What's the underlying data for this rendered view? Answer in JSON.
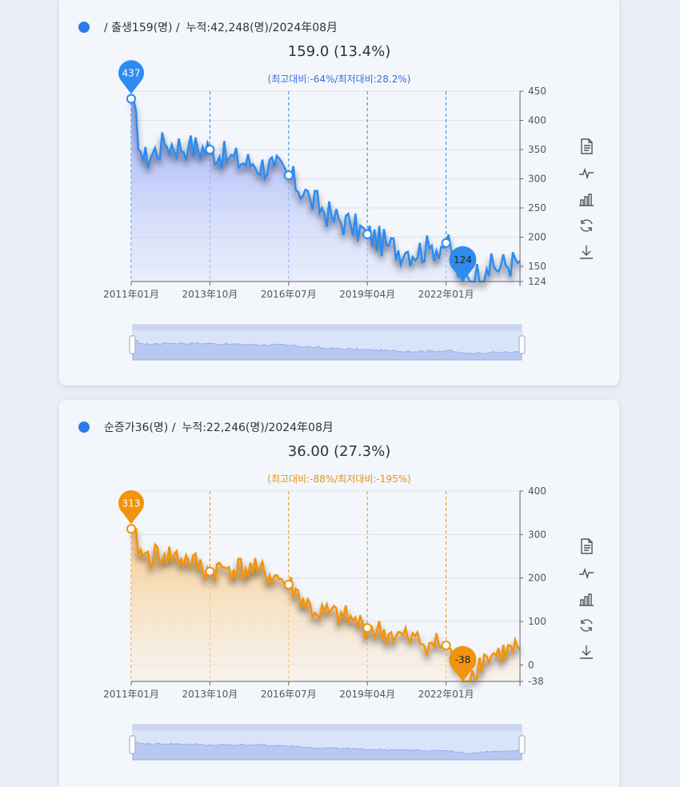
{
  "panels": [
    {
      "header": {
        "prefix": "/ 출생159(명) /",
        "cumulative": "누적:42,248(명)/2024年08月"
      },
      "value_text": "159.0 (13.4%)",
      "compare_text": "(최고대비:-64%/최저대비:28.2%)",
      "accent": "#2f8bef",
      "max_pin": "437",
      "min_pin": "124",
      "tools": [
        "document-icon",
        "line-chart-icon",
        "bar-chart-icon",
        "refresh-icon",
        "download-icon"
      ]
    },
    {
      "header": {
        "prefix": "순증가36(명) /",
        "cumulative": "누적:22,246(명)/2024年08月"
      },
      "value_text": "36.00 (27.3%)",
      "compare_text": "(최고대비:-88%/최저대비:-195%)",
      "accent": "#f2930d",
      "max_pin": "313",
      "min_pin": "-38",
      "tools": [
        "document-icon",
        "line-chart-icon",
        "bar-chart-icon",
        "refresh-icon",
        "download-icon"
      ]
    }
  ],
  "chart_data": [
    {
      "type": "area",
      "x_start": "2011-01",
      "x_end": "2024-08",
      "xticks": [
        "2011年01月",
        "2013年10月",
        "2016年07月",
        "2019年04月",
        "2022年01月"
      ],
      "yticks": [
        "450",
        "400",
        "350",
        "300",
        "250",
        "200",
        "150",
        "124"
      ],
      "ylim": [
        124,
        450
      ],
      "max": 437,
      "min": 124,
      "anchors": [
        [
          "2011-01",
          437
        ],
        [
          "2011-06",
          330
        ],
        [
          "2012-03",
          360
        ],
        [
          "2013-01",
          355
        ],
        [
          "2013-10",
          350
        ],
        [
          "2014-06",
          335
        ],
        [
          "2015-04",
          325
        ],
        [
          "2016-01",
          320
        ],
        [
          "2016-07",
          306
        ],
        [
          "2017-04",
          265
        ],
        [
          "2018-01",
          235
        ],
        [
          "2018-09",
          220
        ],
        [
          "2019-04",
          205
        ],
        [
          "2020-01",
          185
        ],
        [
          "2020-09",
          175
        ],
        [
          "2021-06",
          180
        ],
        [
          "2022-01",
          190
        ],
        [
          "2022-08",
          124
        ],
        [
          "2023-06",
          145
        ],
        [
          "2024-08",
          159
        ]
      ],
      "noise": 26
    },
    {
      "type": "area",
      "x_start": "2011-01",
      "x_end": "2024-08",
      "xticks": [
        "2011年01月",
        "2013年10月",
        "2016年07月",
        "2019年04月",
        "2022年01月"
      ],
      "yticks": [
        "400",
        "300",
        "200",
        "100",
        "0",
        "-38"
      ],
      "ylim": [
        -38,
        400
      ],
      "max": 313,
      "min": -38,
      "anchors": [
        [
          "2011-01",
          313
        ],
        [
          "2011-06",
          250
        ],
        [
          "2012-03",
          255
        ],
        [
          "2013-01",
          240
        ],
        [
          "2013-10",
          215
        ],
        [
          "2014-06",
          225
        ],
        [
          "2015-06",
          215
        ],
        [
          "2016-01",
          205
        ],
        [
          "2016-07",
          185
        ],
        [
          "2017-06",
          120
        ],
        [
          "2018-06",
          110
        ],
        [
          "2019-04",
          85
        ],
        [
          "2020-01",
          70
        ],
        [
          "2020-09",
          60
        ],
        [
          "2021-06",
          50
        ],
        [
          "2022-01",
          45
        ],
        [
          "2022-08",
          -38
        ],
        [
          "2023-06",
          20
        ],
        [
          "2024-08",
          36
        ]
      ],
      "noise": 30
    }
  ]
}
